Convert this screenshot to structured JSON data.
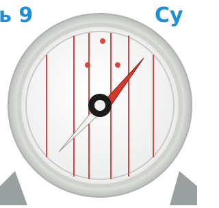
{
  "captions": {
    "left": "ь 9",
    "right": "Су"
  }
}
